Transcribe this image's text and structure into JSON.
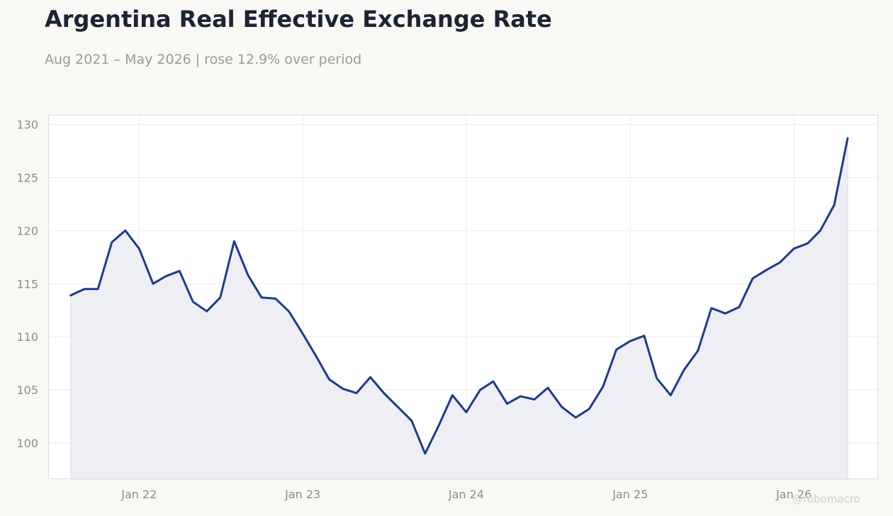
{
  "title": "Argentina Real Effective Exchange Rate",
  "subtitle": "Aug 2021 – May 2026 | rose 12.9% over period",
  "watermark": "@robomacro",
  "colors": {
    "line": "#1f3a8a",
    "fill": "#eeeff5",
    "grid": "#ebebeb",
    "frame": "#dcdcd8",
    "background": "#f9f8f5",
    "plot_background": "#ffffff"
  },
  "chart_data": {
    "type": "area",
    "title": "Argentina Real Effective Exchange Rate",
    "subtitle": "Aug 2021 – May 2026 | rose 12.9% over period",
    "xlabel": "",
    "ylabel": "",
    "x_range": [
      "2021-06-12",
      "2026-07-08"
    ],
    "ylim": [
      96.6,
      130.9
    ],
    "grid": true,
    "legend": "none",
    "y_ticks": [
      100,
      105,
      110,
      115,
      120,
      125,
      130
    ],
    "x_ticks": [
      {
        "date": "2022-01-01",
        "label": "Jan 22"
      },
      {
        "date": "2023-01-01",
        "label": "Jan 23"
      },
      {
        "date": "2024-01-01",
        "label": "Jan 24"
      },
      {
        "date": "2025-01-01",
        "label": "Jan 25"
      },
      {
        "date": "2026-01-01",
        "label": "Jan 26"
      }
    ],
    "series": [
      {
        "x": [
          "2021-08",
          "2021-09",
          "2021-10",
          "2021-11",
          "2021-12",
          "2022-01",
          "2022-02",
          "2022-03",
          "2022-04",
          "2022-05",
          "2022-06",
          "2022-07",
          "2022-08",
          "2022-09",
          "2022-10",
          "2022-11",
          "2022-12",
          "2023-01",
          "2023-02",
          "2023-03",
          "2023-04",
          "2023-05",
          "2023-06",
          "2023-07",
          "2023-08",
          "2023-09",
          "2023-10",
          "2023-11",
          "2023-12",
          "2024-01",
          "2024-02",
          "2024-03",
          "2024-04",
          "2024-05",
          "2024-06",
          "2024-07",
          "2024-08",
          "2024-09",
          "2024-10",
          "2024-11",
          "2024-12",
          "2025-01",
          "2025-02",
          "2025-03",
          "2025-04",
          "2025-05",
          "2025-06",
          "2025-07",
          "2025-08",
          "2025-09",
          "2025-10",
          "2025-11",
          "2025-12",
          "2026-01",
          "2026-02",
          "2026-03",
          "2026-04",
          "2026-05"
        ],
        "values": [
          113.9,
          114.5,
          114.5,
          118.9,
          120.0,
          118.3,
          115.0,
          115.7,
          116.2,
          113.3,
          112.4,
          113.7,
          119.0,
          115.8,
          113.7,
          113.6,
          112.4,
          110.3,
          108.1,
          106.0,
          105.1,
          104.7,
          106.2,
          104.7,
          103.4,
          102.1,
          99.0,
          101.7,
          104.5,
          102.9,
          105.0,
          105.8,
          103.7,
          104.4,
          104.1,
          105.2,
          103.4,
          102.4,
          103.2,
          105.3,
          108.8,
          109.6,
          110.1,
          106.1,
          104.5,
          106.9,
          108.7,
          112.7,
          112.2,
          112.8,
          115.5,
          116.3,
          117.0,
          118.3,
          118.8,
          120.0,
          122.4,
          128.7
        ]
      }
    ]
  }
}
